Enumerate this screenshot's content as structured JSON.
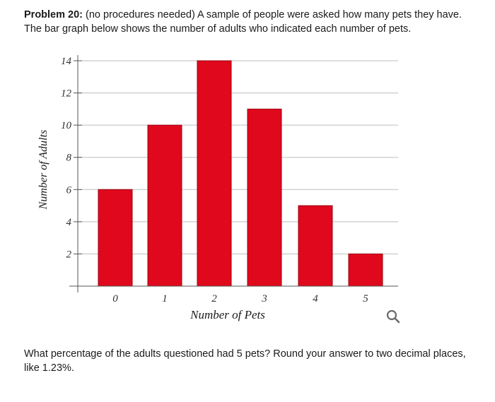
{
  "problem": {
    "label": "Problem 20:",
    "intro": " (no procedures needed) A sample of people were asked how many pets they have.",
    "line2": "The bar graph below shows the number of adults who indicated each number of pets."
  },
  "question": {
    "text": "What percentage of the adults questioned had 5 pets? Round your answer to two decimal places, like 1.23%."
  },
  "search_icon": "search-icon",
  "colors": {
    "bar": "#e0081c",
    "bar_edge": "#9a0010",
    "grid": "#bdbdbd",
    "axis": "#555555"
  },
  "chart_data": {
    "type": "bar",
    "categories": [
      "0",
      "1",
      "2",
      "3",
      "4",
      "5"
    ],
    "values": [
      6,
      10,
      14,
      11,
      5,
      2
    ],
    "title": "",
    "xlabel": "Number of Pets",
    "ylabel": "Number of Adults",
    "ylim": [
      0,
      14
    ],
    "yticks": [
      "2",
      "4",
      "6",
      "8",
      "10",
      "12",
      "14"
    ],
    "grid": true
  }
}
